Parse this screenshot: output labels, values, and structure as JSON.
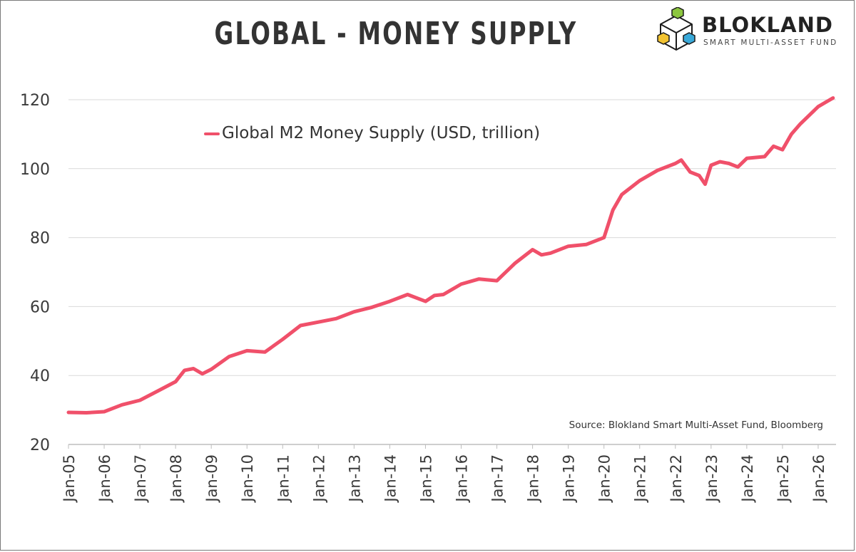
{
  "page": {
    "title": "GLOBAL - MONEY SUPPLY"
  },
  "logo": {
    "name": "BLOKLAND",
    "subtitle": "SMART MULTI-ASSET FUND",
    "icon": "stacked-cubes-icon"
  },
  "source": "Source: Blokland Smart Multi-Asset Fund, Bloomberg",
  "chart_data": {
    "type": "line",
    "title": "GLOBAL - MONEY SUPPLY",
    "xlabel": "",
    "ylabel": "",
    "ylim": [
      20,
      120
    ],
    "yticks": [
      20,
      40,
      60,
      80,
      100,
      120
    ],
    "xlim": [
      "2005-01",
      "2026-07"
    ],
    "xticks": [
      "Jan-05",
      "Jan-06",
      "Jan-07",
      "Jan-08",
      "Jan-09",
      "Jan-10",
      "Jan-11",
      "Jan-12",
      "Jan-13",
      "Jan-14",
      "Jan-15",
      "Jan-16",
      "Jan-17",
      "Jan-18",
      "Jan-19",
      "Jan-20",
      "Jan-21",
      "Jan-22",
      "Jan-23",
      "Jan-24",
      "Jan-25",
      "Jan-26"
    ],
    "grid": "horizontal",
    "legend_position": "top-left",
    "series": [
      {
        "name": "Global M2 Money Supply (USD, trillion)",
        "color": "#f0506a",
        "x": [
          "2005-01",
          "2005-07",
          "2006-01",
          "2006-07",
          "2007-01",
          "2007-07",
          "2008-01",
          "2008-04",
          "2008-07",
          "2008-10",
          "2009-01",
          "2009-07",
          "2010-01",
          "2010-07",
          "2011-01",
          "2011-07",
          "2012-01",
          "2012-07",
          "2013-01",
          "2013-07",
          "2014-01",
          "2014-07",
          "2015-01",
          "2015-04",
          "2015-07",
          "2016-01",
          "2016-07",
          "2017-01",
          "2017-04",
          "2017-07",
          "2018-01",
          "2018-04",
          "2018-07",
          "2019-01",
          "2019-07",
          "2020-01",
          "2020-04",
          "2020-07",
          "2021-01",
          "2021-07",
          "2022-01",
          "2022-03",
          "2022-06",
          "2022-09",
          "2022-11",
          "2023-01",
          "2023-04",
          "2023-07",
          "2023-10",
          "2024-01",
          "2024-07",
          "2024-10",
          "2025-01",
          "2025-04",
          "2025-07",
          "2026-01",
          "2026-04",
          "2026-06"
        ],
        "values": [
          29.3,
          29.2,
          29.5,
          31.5,
          32.8,
          35.5,
          38.2,
          41.5,
          42.0,
          40.5,
          41.8,
          45.5,
          47.2,
          46.8,
          50.5,
          54.5,
          55.5,
          56.5,
          58.5,
          59.8,
          61.5,
          63.5,
          61.5,
          63.2,
          63.5,
          66.5,
          68.0,
          67.5,
          70.0,
          72.5,
          76.5,
          75.0,
          75.5,
          77.5,
          78.0,
          80.0,
          88.0,
          92.5,
          96.5,
          99.5,
          101.5,
          102.5,
          99.0,
          98.0,
          95.5,
          101.0,
          102.0,
          101.5,
          100.5,
          103.0,
          103.5,
          106.5,
          105.5,
          110.0,
          113.0,
          118.0,
          119.5,
          120.5
        ]
      }
    ]
  }
}
